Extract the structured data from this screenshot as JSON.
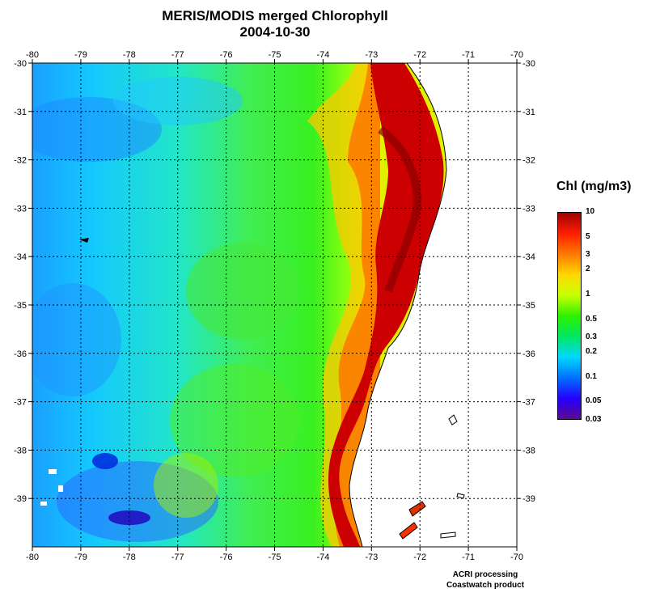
{
  "title": {
    "line1": "MERIS/MODIS merged Chlorophyll",
    "line2": "2004-10-30"
  },
  "axes": {
    "lon_ticks": [
      "-80",
      "-79",
      "-78",
      "-77",
      "-76",
      "-75",
      "-74",
      "-73",
      "-72",
      "-71",
      "-70"
    ],
    "lat_ticks": [
      "-30",
      "-31",
      "-32",
      "-33",
      "-34",
      "-35",
      "-36",
      "-37",
      "-38",
      "-39"
    ],
    "lon_range": [
      -80,
      -70
    ],
    "lat_range": [
      -40,
      -30
    ],
    "grid": "dotted"
  },
  "legend": {
    "title": "Chl (mg/m3)",
    "scale": "log",
    "range": [
      0.03,
      10
    ],
    "ticks": [
      "10",
      "5",
      "3",
      "2",
      "1",
      "0.5",
      "0.3",
      "0.2",
      "0.1",
      "0.05",
      "0.03"
    ],
    "tick_values": [
      10,
      5,
      3,
      2,
      1,
      0.5,
      0.3,
      0.2,
      0.1,
      0.05,
      0.03
    ],
    "colors": [
      "#5a0a8c",
      "#2400ff",
      "#0070ff",
      "#00d8ff",
      "#00e860",
      "#30f000",
      "#c8ff00",
      "#ffd800",
      "#ff7800",
      "#ff1e00",
      "#a00000"
    ]
  },
  "credits": {
    "line1": "ACRI processing",
    "line2": "Coastwatch product"
  }
}
